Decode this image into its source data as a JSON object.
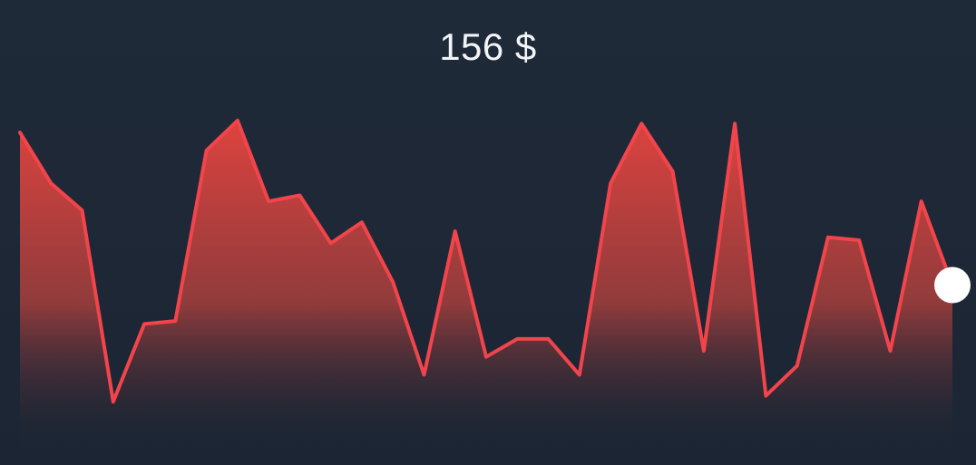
{
  "price_label": "156 $",
  "colors": {
    "background": "#1d2736",
    "line": "#f2444b",
    "fill_top": "#e8443f",
    "marker": "#ffffff"
  },
  "chart_data": {
    "type": "area",
    "title": "156 $",
    "xlabel": "",
    "ylabel": "",
    "grid": false,
    "ylim": [
      0,
      100
    ],
    "values": [
      96,
      79,
      70,
      6,
      32,
      33,
      90,
      100,
      73,
      75,
      59,
      66,
      46,
      15,
      63,
      21,
      27,
      27,
      15,
      79,
      99,
      83,
      23,
      99,
      8,
      18,
      61,
      60,
      23,
      73,
      45
    ],
    "highlight": {
      "index": 30,
      "label": "156 $"
    }
  }
}
